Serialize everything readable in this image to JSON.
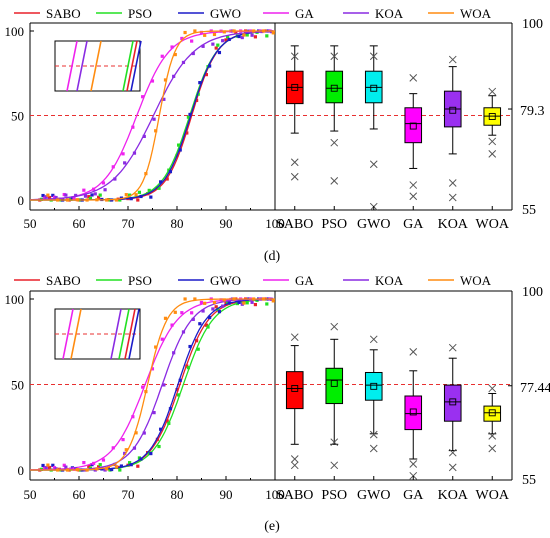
{
  "legend_items": [
    "SABO",
    "PSO",
    "GWO",
    "GA",
    "KOA",
    "WOA"
  ],
  "colors": {
    "SABO": "#e8202a",
    "PSO": "#22e022",
    "GWO": "#1c1cc8",
    "GA": "#ee22ee",
    "KOA": "#8a2be2",
    "WOA": "#ff8c10",
    "ref": "#e83030",
    "box_fill": {
      "SABO": "#ff0000",
      "PSO": "#00ee00",
      "GWO": "#00eeee",
      "GA": "#ff00ff",
      "KOA": "#9a30f0",
      "WOA": "#ffff00"
    }
  },
  "chart_data": [
    {
      "panel": "d",
      "label": "(d)",
      "left": {
        "type": "line",
        "xlim": [
          50,
          100
        ],
        "ylim": [
          0,
          100
        ],
        "xticks": [
          "50",
          "60",
          "70",
          "80",
          "90",
          "100"
        ],
        "yticks": [
          "0",
          "50",
          "100"
        ],
        "ref_y": 50,
        "series": [
          {
            "name": "SABO",
            "mid": 83.0,
            "k": 0.38
          },
          {
            "name": "PSO",
            "mid": 82.6,
            "k": 0.36
          },
          {
            "name": "GWO",
            "mid": 82.8,
            "k": 0.37
          },
          {
            "name": "GA",
            "mid": 71.8,
            "k": 0.3
          },
          {
            "name": "KOA",
            "mid": 75.2,
            "k": 0.24
          },
          {
            "name": "WOA",
            "mid": 76.4,
            "k": 0.62
          }
        ]
      },
      "right": {
        "type": "box",
        "categories": [
          "SABO",
          "PSO",
          "GWO",
          "GA",
          "KOA",
          "WOA"
        ],
        "ylim": [
          55,
          100
        ],
        "yticks": [
          "55",
          "100"
        ],
        "ref_value": 79.3,
        "ref_label": "79.3",
        "boxes": [
          {
            "name": "SABO",
            "q1": 80.6,
            "q3": 88.4,
            "median": 84.5,
            "mean": 84.5,
            "wlo": 73.5,
            "whi": 94.5,
            "out_lo": [
              66.5,
              63.0
            ],
            "out_hi": [
              92.0
            ]
          },
          {
            "name": "PSO",
            "q1": 80.8,
            "q3": 88.4,
            "median": 84.3,
            "mean": 84.3,
            "wlo": 74.0,
            "whi": 94.5,
            "out_lo": [
              71.2,
              62.0
            ],
            "out_hi": [
              92.0
            ]
          },
          {
            "name": "GWO",
            "q1": 80.8,
            "q3": 88.4,
            "median": 84.5,
            "mean": 84.3,
            "wlo": 74.5,
            "whi": 94.5,
            "out_lo": [
              66.0,
              55.8
            ],
            "out_hi": [
              92.0
            ]
          },
          {
            "name": "GA",
            "q1": 71.2,
            "q3": 79.6,
            "median": 75.8,
            "mean": 75.2,
            "wlo": 65.0,
            "whi": 83.0,
            "out_lo": [
              61.0,
              58.3
            ],
            "out_hi": [
              86.8
            ]
          },
          {
            "name": "KOA",
            "q1": 75.0,
            "q3": 83.6,
            "median": 79.3,
            "mean": 79.0,
            "wlo": 68.5,
            "whi": 89.5,
            "out_lo": [
              61.5,
              58.0
            ],
            "out_hi": [
              91.2
            ]
          },
          {
            "name": "WOA",
            "q1": 75.4,
            "q3": 79.6,
            "median": 77.6,
            "mean": 77.5,
            "wlo": 73.0,
            "whi": 82.5,
            "out_lo": [
              71.5,
              68.5
            ],
            "out_hi": [
              83.5
            ]
          }
        ]
      }
    },
    {
      "panel": "e",
      "label": "(e)",
      "left": {
        "type": "line",
        "xlim": [
          50,
          100
        ],
        "ylim": [
          0,
          100
        ],
        "xticks": [
          "50",
          "60",
          "70",
          "80",
          "90",
          "100"
        ],
        "yticks": [
          "0",
          "50",
          "100"
        ],
        "ref_y": 50,
        "series": [
          {
            "name": "SABO",
            "mid": 80.6,
            "k": 0.34
          },
          {
            "name": "PSO",
            "mid": 81.3,
            "k": 0.33
          },
          {
            "name": "GWO",
            "mid": 80.2,
            "k": 0.35
          },
          {
            "name": "GA",
            "mid": 73.5,
            "k": 0.3
          },
          {
            "name": "KOA",
            "mid": 77.0,
            "k": 0.33
          },
          {
            "name": "WOA",
            "mid": 74.0,
            "k": 0.5
          }
        ]
      },
      "right": {
        "type": "box",
        "categories": [
          "SABO",
          "PSO",
          "GWO",
          "GA",
          "KOA",
          "WOA"
        ],
        "ylim": [
          55,
          100
        ],
        "yticks": [
          "55",
          "100"
        ],
        "ref_value": 77.44,
        "ref_label": "77.44",
        "boxes": [
          {
            "name": "SABO",
            "q1": 72.0,
            "q3": 80.8,
            "median": 76.8,
            "mean": 76.8,
            "wlo": 63.5,
            "whi": 87.0,
            "out_lo": [
              60.0,
              58.5
            ],
            "out_hi": [
              89.0
            ]
          },
          {
            "name": "PSO",
            "q1": 73.2,
            "q3": 81.6,
            "median": 78.8,
            "mean": 78.0,
            "wlo": 63.5,
            "whi": 88.5,
            "out_lo": [
              64.0,
              58.5
            ],
            "out_hi": [
              91.5
            ]
          },
          {
            "name": "GWO",
            "q1": 74.0,
            "q3": 80.6,
            "median": 77.6,
            "mean": 77.3,
            "wlo": 66.0,
            "whi": 86.0,
            "out_lo": [
              65.8,
              62.5
            ],
            "out_hi": [
              88.5
            ]
          },
          {
            "name": "GA",
            "q1": 67.0,
            "q3": 75.0,
            "median": 70.8,
            "mean": 71.2,
            "wlo": 60.0,
            "whi": 81.0,
            "out_lo": [
              58.8,
              56.0
            ],
            "out_hi": [
              85.5
            ]
          },
          {
            "name": "KOA",
            "q1": 69.0,
            "q3": 77.6,
            "median": 73.6,
            "mean": 73.6,
            "wlo": 62.0,
            "whi": 84.0,
            "out_lo": [
              61.5,
              58.0
            ],
            "out_hi": [
              86.5
            ]
          },
          {
            "name": "WOA",
            "q1": 69.0,
            "q3": 72.6,
            "median": 71.0,
            "mean": 71.0,
            "wlo": 66.0,
            "whi": 75.6,
            "out_lo": [
              65.5,
              62.5
            ],
            "out_hi": [
              76.8
            ]
          }
        ]
      }
    }
  ]
}
